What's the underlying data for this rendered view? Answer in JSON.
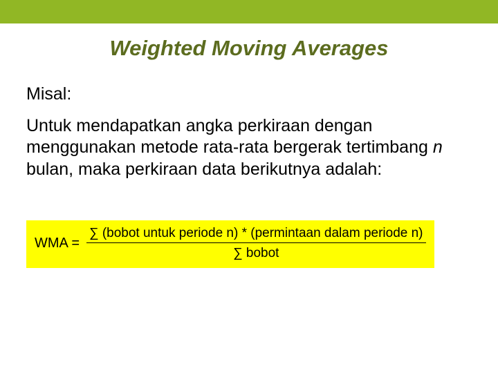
{
  "colors": {
    "top_bar": "#91b725",
    "title_color": "#5c6c1f",
    "background": "#ffffff",
    "highlight": "#ffff00",
    "text": "#000000"
  },
  "typography": {
    "title_fontsize": 31,
    "body_fontsize": 25,
    "formula_fontsize": 19
  },
  "title": "Weighted Moving Averages",
  "label": "Misal:",
  "body_pre": "Untuk mendapatkan angka perkiraan dengan menggunakan metode rata-rata bergerak tertimbang ",
  "body_italic": "n",
  "body_post": " bulan, maka perkiraan data berikutnya adalah:",
  "formula": {
    "lhs": "WMA =",
    "numerator": "∑ (bobot untuk periode n) * (permintaan dalam periode n)",
    "denominator": "∑ bobot"
  }
}
